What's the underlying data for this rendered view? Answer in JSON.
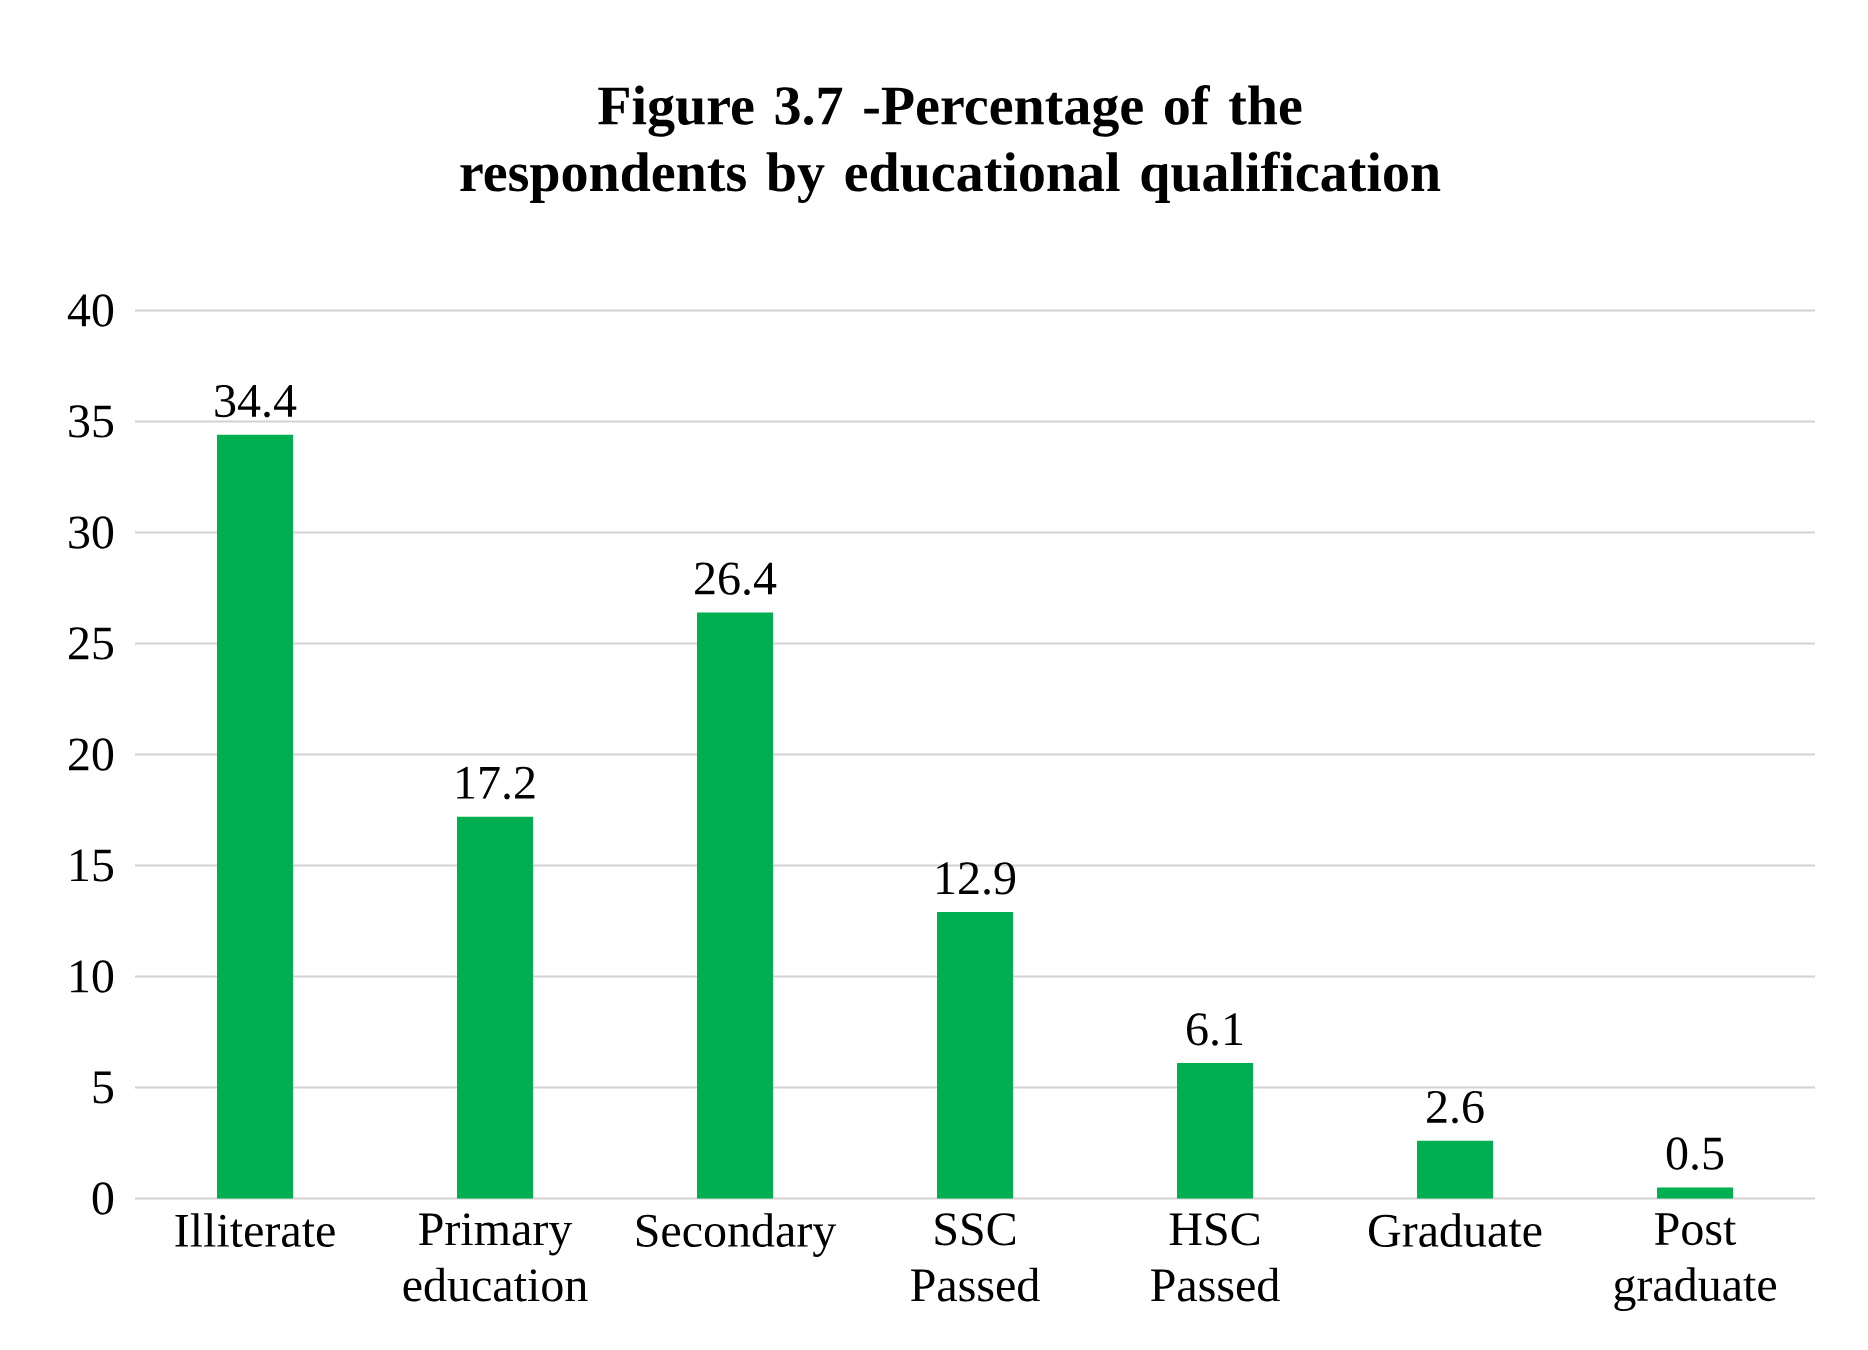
{
  "chart_data": {
    "type": "bar",
    "title": "Figure 3.7 -Percentage of the respondents by educational qualification",
    "categories": [
      "Illiterate",
      "Primary education",
      "Secondary",
      "SSC Passed",
      "HSC Passed",
      "Graduate",
      "Post graduate"
    ],
    "values": [
      34.4,
      17.2,
      26.4,
      12.9,
      6.1,
      2.6,
      0.5
    ],
    "color": "#00b050",
    "ylim": [
      0,
      40
    ],
    "yticks": [
      0,
      5,
      10,
      15,
      20,
      25,
      30,
      35,
      40
    ],
    "grid": "y",
    "data_labels": true
  }
}
